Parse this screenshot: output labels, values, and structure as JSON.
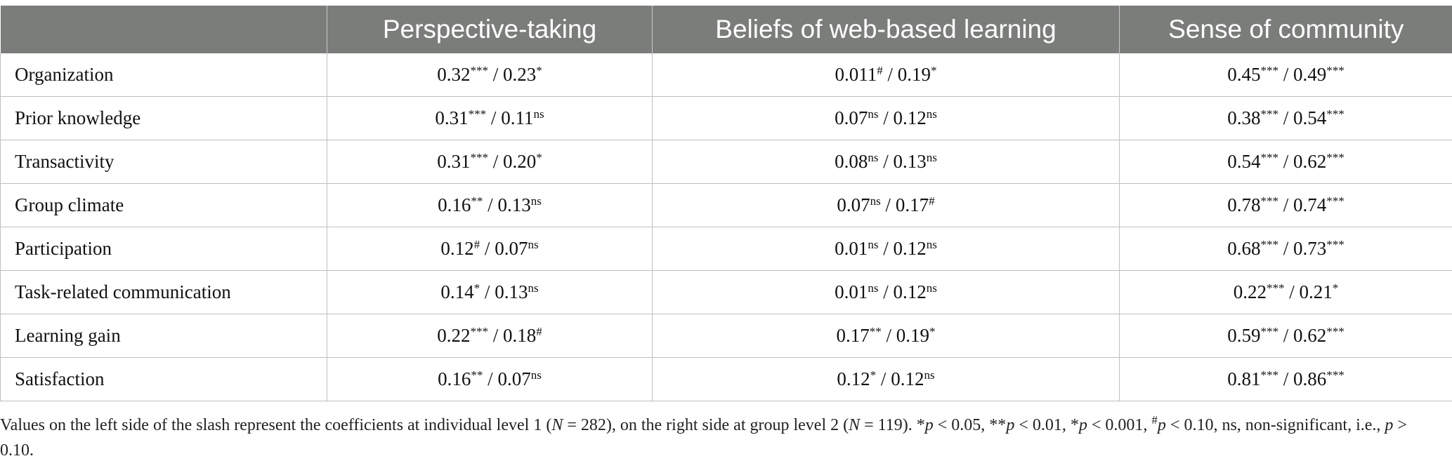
{
  "table": {
    "headers": [
      "",
      "Perspective-taking",
      "Beliefs of web-based learning",
      "Sense of community"
    ],
    "rows": [
      {
        "label": "Organization",
        "cells": [
          {
            "left": "0.32",
            "left_sup": "***",
            "right": "0.23",
            "right_sup": "*"
          },
          {
            "left": "0.011",
            "left_sup": "#",
            "right": "0.19",
            "right_sup": "*"
          },
          {
            "left": "0.45",
            "left_sup": "***",
            "right": "0.49",
            "right_sup": "***"
          }
        ]
      },
      {
        "label": "Prior knowledge",
        "cells": [
          {
            "left": "0.31",
            "left_sup": "***",
            "right": "0.11",
            "right_sup": "ns"
          },
          {
            "left": "0.07",
            "left_sup": "ns",
            "right": "0.12",
            "right_sup": "ns"
          },
          {
            "left": "0.38",
            "left_sup": "***",
            "right": "0.54",
            "right_sup": "***"
          }
        ]
      },
      {
        "label": "Transactivity",
        "cells": [
          {
            "left": "0.31",
            "left_sup": "***",
            "right": "0.20",
            "right_sup": "*"
          },
          {
            "left": "0.08",
            "left_sup": "ns",
            "right": "0.13",
            "right_sup": "ns"
          },
          {
            "left": "0.54",
            "left_sup": "***",
            "right": "0.62",
            "right_sup": "***"
          }
        ]
      },
      {
        "label": "Group climate",
        "cells": [
          {
            "left": "0.16",
            "left_sup": "**",
            "right": "0.13",
            "right_sup": "ns"
          },
          {
            "left": "0.07",
            "left_sup": "ns",
            "right": "0.17",
            "right_sup": "#"
          },
          {
            "left": "0.78",
            "left_sup": "***",
            "right": "0.74",
            "right_sup": "***"
          }
        ]
      },
      {
        "label": "Participation",
        "cells": [
          {
            "left": "0.12",
            "left_sup": "#",
            "right": "0.07",
            "right_sup": "ns"
          },
          {
            "left": "0.01",
            "left_sup": "ns",
            "right": "0.12",
            "right_sup": "ns"
          },
          {
            "left": "0.68",
            "left_sup": "***",
            "right": "0.73",
            "right_sup": "***"
          }
        ]
      },
      {
        "label": "Task-related communication",
        "cells": [
          {
            "left": "0.14",
            "left_sup": "*",
            "right": "0.13",
            "right_sup": "ns"
          },
          {
            "left": "0.01",
            "left_sup": "ns",
            "right": "0.12",
            "right_sup": "ns"
          },
          {
            "left": "0.22",
            "left_sup": "***",
            "right": "0.21",
            "right_sup": "*"
          }
        ]
      },
      {
        "label": "Learning gain",
        "cells": [
          {
            "left": "0.22",
            "left_sup": "***",
            "right": "0.18",
            "right_sup": "#"
          },
          {
            "left": "0.17",
            "left_sup": "**",
            "right": "0.19",
            "right_sup": "*"
          },
          {
            "left": "0.59",
            "left_sup": "***",
            "right": "0.62",
            "right_sup": "***"
          }
        ]
      },
      {
        "label": "Satisfaction",
        "cells": [
          {
            "left": "0.16",
            "left_sup": "**",
            "right": "0.07",
            "right_sup": "ns"
          },
          {
            "left": "0.12",
            "left_sup": "*",
            "right": "0.12",
            "right_sup": "ns"
          },
          {
            "left": "0.81",
            "left_sup": "***",
            "right": "0.86",
            "right_sup": "***"
          }
        ]
      }
    ]
  },
  "footnote": {
    "t1": "Values on the left side of the slash represent the coefficients at individual level 1 (",
    "n1": "N",
    "t2": " = 282), on the right side at group level 2 (",
    "n2": "N",
    "t3": " = 119). *",
    "p1": "p",
    "t4": " < 0.05, **",
    "p2": "p",
    "t5": " < 0.01, *",
    "p3": "p",
    "t6": " < 0.001, ",
    "hash": "#",
    "p4": "p",
    "t7": " < 0.10, ns, non-significant, i.e., ",
    "p5": "p",
    "t8": " > 0.10."
  }
}
